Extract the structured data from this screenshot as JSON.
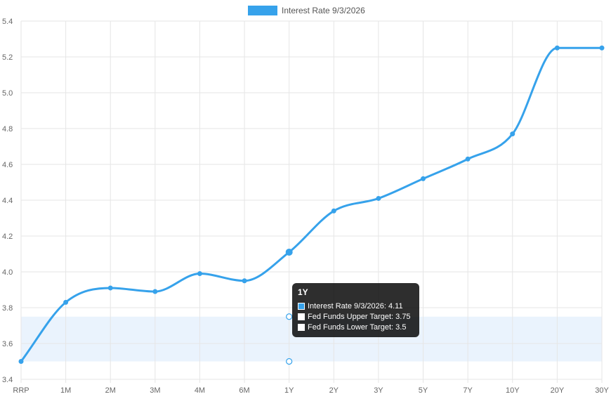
{
  "chart_data": {
    "type": "line",
    "categories": [
      "RRP",
      "1M",
      "2M",
      "3M",
      "4M",
      "6M",
      "1Y",
      "2Y",
      "3Y",
      "5Y",
      "7Y",
      "10Y",
      "20Y",
      "30Y"
    ],
    "series": [
      {
        "name": "Interest Rate 9/3/2026",
        "values": [
          3.5,
          3.83,
          3.91,
          3.89,
          3.99,
          3.95,
          4.11,
          4.34,
          4.41,
          4.52,
          4.63,
          4.77,
          5.25,
          5.25
        ],
        "color": "#36a2eb"
      }
    ],
    "target_band": {
      "upper_label": "Fed Funds Upper Target",
      "upper": 3.75,
      "lower_label": "Fed Funds Lower Target",
      "lower": 3.5,
      "fill": "#eaf3fd"
    },
    "ylim": [
      3.4,
      5.4
    ],
    "yticks": [
      "3.4",
      "3.6",
      "3.8",
      "4.0",
      "4.2",
      "4.4",
      "4.6",
      "4.8",
      "5.0",
      "5.2",
      "5.4"
    ],
    "grid": true,
    "legend_position": "top-center",
    "tooltip": {
      "title": "1Y",
      "rows": [
        {
          "text": "Interest Rate 9/3/2026: 4.11",
          "swatch": "#36a2eb"
        },
        {
          "text": "Fed Funds Upper Target: 3.75",
          "swatch": "#ffffff"
        },
        {
          "text": "Fed Funds Lower Target: 3.5",
          "swatch": "#ffffff"
        }
      ]
    }
  }
}
